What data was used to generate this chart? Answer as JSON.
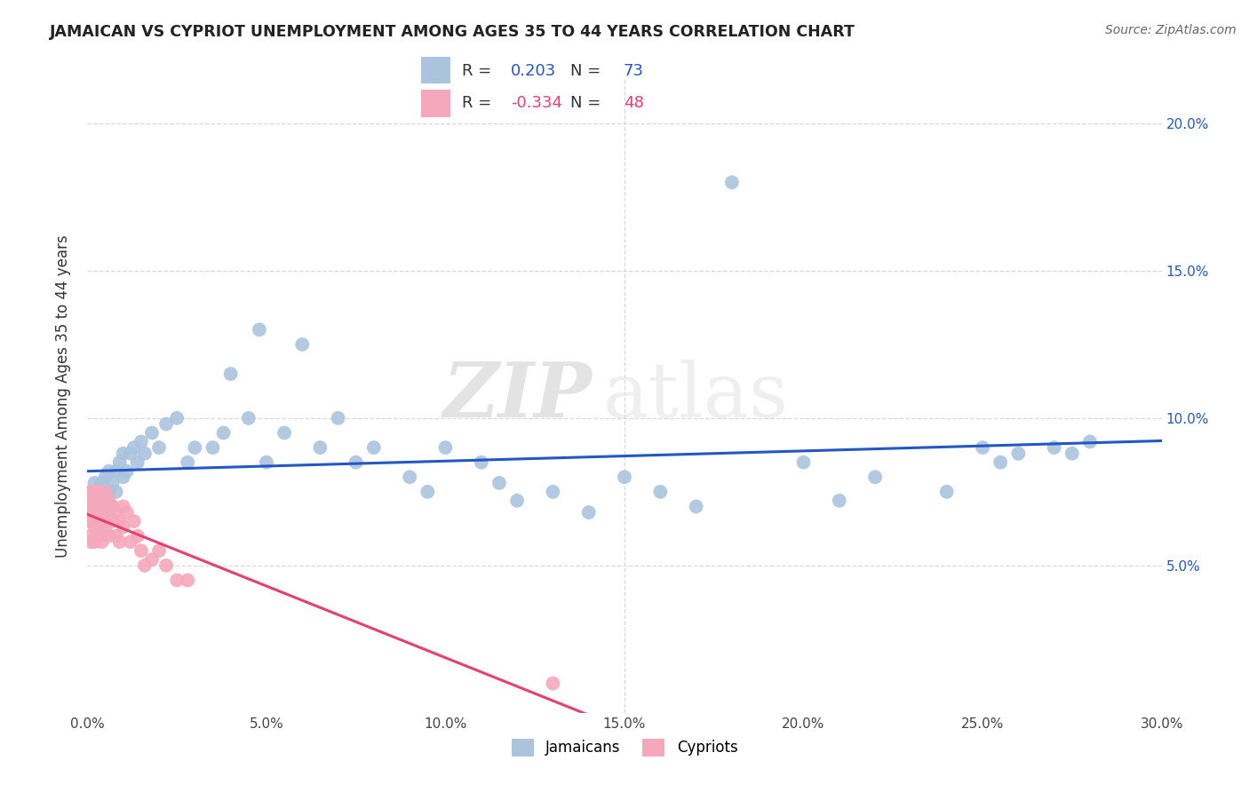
{
  "title": "JAMAICAN VS CYPRIOT UNEMPLOYMENT AMONG AGES 35 TO 44 YEARS CORRELATION CHART",
  "source": "Source: ZipAtlas.com",
  "ylabel": "Unemployment Among Ages 35 to 44 years",
  "xlim": [
    0.0,
    0.3
  ],
  "ylim": [
    0.0,
    0.215
  ],
  "xticks": [
    0.0,
    0.05,
    0.1,
    0.15,
    0.2,
    0.25,
    0.3
  ],
  "xticklabels": [
    "0.0%",
    "5.0%",
    "10.0%",
    "15.0%",
    "20.0%",
    "25.0%",
    "30.0%"
  ],
  "yticks_right": [
    0.05,
    0.1,
    0.15,
    0.2
  ],
  "yticklabels_right": [
    "5.0%",
    "10.0%",
    "15.0%",
    "20.0%"
  ],
  "jamaican_color": "#aac4de",
  "cypriot_color": "#f5a8bc",
  "jamaican_line_color": "#2457c5",
  "cypriot_line_color": "#e8406e",
  "legend_r_jamaican": "0.203",
  "legend_n_jamaican": "73",
  "legend_r_cypriot": "-0.334",
  "legend_n_cypriot": "48",
  "watermark_zip": "ZIP",
  "watermark_atlas": "atlas",
  "background_color": "#ffffff",
  "grid_color": "#d8d8d8",
  "jamaican_x": [
    0.001,
    0.001,
    0.001,
    0.002,
    0.002,
    0.002,
    0.002,
    0.003,
    0.003,
    0.003,
    0.003,
    0.004,
    0.004,
    0.004,
    0.005,
    0.005,
    0.005,
    0.006,
    0.006,
    0.006,
    0.007,
    0.007,
    0.008,
    0.008,
    0.009,
    0.01,
    0.01,
    0.011,
    0.012,
    0.013,
    0.014,
    0.015,
    0.016,
    0.018,
    0.02,
    0.022,
    0.025,
    0.028,
    0.03,
    0.035,
    0.038,
    0.04,
    0.045,
    0.048,
    0.05,
    0.055,
    0.06,
    0.065,
    0.07,
    0.075,
    0.08,
    0.09,
    0.095,
    0.1,
    0.11,
    0.115,
    0.12,
    0.13,
    0.14,
    0.15,
    0.16,
    0.17,
    0.18,
    0.2,
    0.21,
    0.22,
    0.24,
    0.25,
    0.255,
    0.26,
    0.27,
    0.275,
    0.28
  ],
  "jamaican_y": [
    0.068,
    0.072,
    0.075,
    0.065,
    0.07,
    0.073,
    0.078,
    0.063,
    0.068,
    0.072,
    0.076,
    0.07,
    0.074,
    0.078,
    0.065,
    0.072,
    0.08,
    0.068,
    0.075,
    0.082,
    0.07,
    0.078,
    0.075,
    0.082,
    0.085,
    0.08,
    0.088,
    0.082,
    0.088,
    0.09,
    0.085,
    0.092,
    0.088,
    0.095,
    0.09,
    0.098,
    0.1,
    0.085,
    0.09,
    0.09,
    0.095,
    0.115,
    0.1,
    0.13,
    0.085,
    0.095,
    0.125,
    0.09,
    0.1,
    0.085,
    0.09,
    0.08,
    0.075,
    0.09,
    0.085,
    0.078,
    0.072,
    0.075,
    0.068,
    0.08,
    0.075,
    0.07,
    0.18,
    0.085,
    0.072,
    0.08,
    0.075,
    0.09,
    0.085,
    0.088,
    0.09,
    0.088,
    0.092
  ],
  "cypriot_x": [
    0.001,
    0.001,
    0.001,
    0.001,
    0.001,
    0.001,
    0.001,
    0.002,
    0.002,
    0.002,
    0.002,
    0.002,
    0.002,
    0.002,
    0.003,
    0.003,
    0.003,
    0.003,
    0.003,
    0.003,
    0.004,
    0.004,
    0.004,
    0.005,
    0.005,
    0.005,
    0.006,
    0.006,
    0.007,
    0.007,
    0.008,
    0.008,
    0.009,
    0.009,
    0.01,
    0.01,
    0.011,
    0.012,
    0.013,
    0.014,
    0.015,
    0.016,
    0.018,
    0.02,
    0.022,
    0.025,
    0.028,
    0.13
  ],
  "cypriot_y": [
    0.068,
    0.07,
    0.075,
    0.072,
    0.065,
    0.06,
    0.058,
    0.063,
    0.068,
    0.072,
    0.058,
    0.065,
    0.07,
    0.075,
    0.06,
    0.065,
    0.068,
    0.072,
    0.062,
    0.075,
    0.058,
    0.065,
    0.07,
    0.062,
    0.068,
    0.075,
    0.06,
    0.072,
    0.065,
    0.07,
    0.06,
    0.068,
    0.058,
    0.065,
    0.063,
    0.07,
    0.068,
    0.058,
    0.065,
    0.06,
    0.055,
    0.05,
    0.052,
    0.055,
    0.05,
    0.045,
    0.045,
    0.01
  ]
}
